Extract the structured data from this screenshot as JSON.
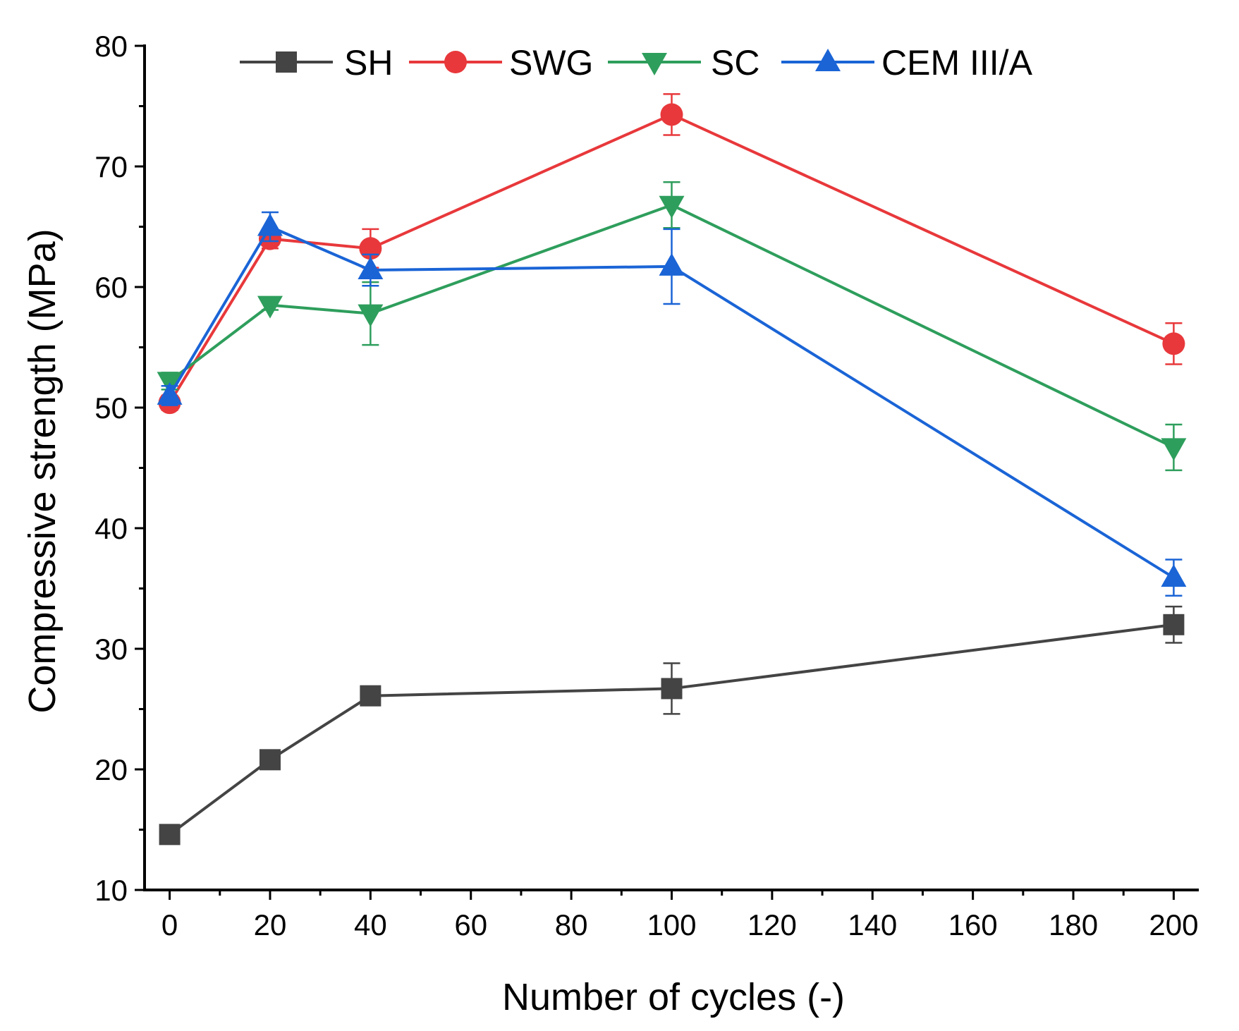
{
  "chart_data": {
    "type": "line",
    "title": "",
    "xlabel": "Number of cycles (-)",
    "ylabel": "Compressive strength (MPa)",
    "xlim": [
      -5,
      205
    ],
    "ylim": [
      10,
      80
    ],
    "xticks": [
      0,
      20,
      40,
      60,
      80,
      100,
      120,
      140,
      160,
      180,
      200
    ],
    "yticks": [
      10,
      20,
      30,
      40,
      50,
      60,
      70,
      80
    ],
    "grid": false,
    "legend_position": "top",
    "x": [
      0,
      20,
      40,
      100,
      200
    ],
    "series": [
      {
        "name": "SH",
        "color": "#444444",
        "marker": "square",
        "values": [
          14.6,
          20.8,
          26.1,
          26.7,
          32.0
        ],
        "errors": [
          0.3,
          0.5,
          0.4,
          2.1,
          1.5
        ]
      },
      {
        "name": "SWG",
        "color": "#e8383b",
        "marker": "circle",
        "values": [
          50.4,
          64.0,
          63.2,
          74.3,
          55.3
        ],
        "errors": [
          0.6,
          0.8,
          1.6,
          1.7,
          1.7
        ]
      },
      {
        "name": "SC",
        "color": "#2e9e5c",
        "marker": "triangle-down",
        "values": [
          52.2,
          58.5,
          57.8,
          66.8,
          46.7
        ],
        "errors": [
          0.7,
          0.4,
          2.6,
          1.9,
          1.9
        ]
      },
      {
        "name": "CEM III/A",
        "color": "#1a64d6",
        "marker": "triangle-up",
        "values": [
          51.0,
          65.0,
          61.4,
          61.7,
          35.9
        ],
        "errors": [
          0.8,
          1.2,
          1.3,
          3.1,
          1.5
        ]
      }
    ]
  }
}
